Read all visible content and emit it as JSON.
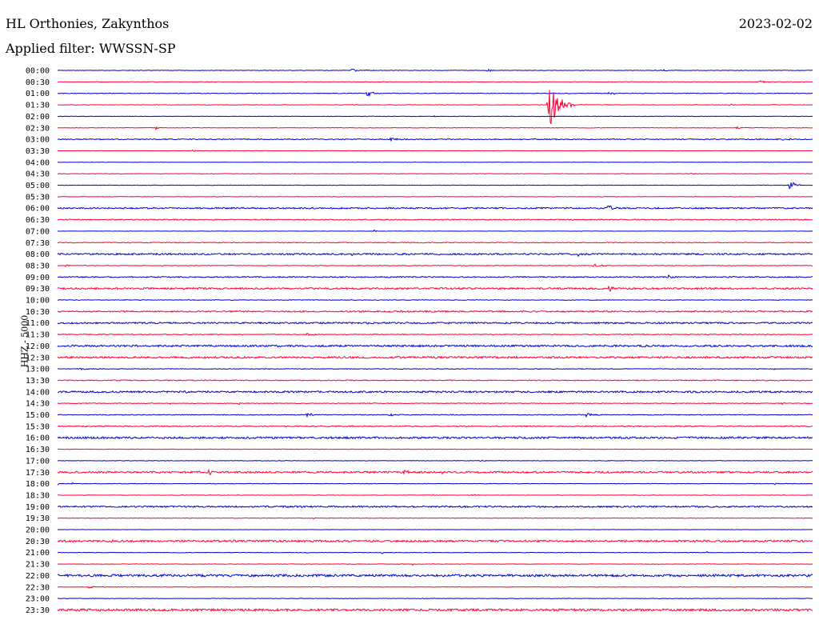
{
  "header": {
    "station": "HL Orthonies, Zakynthos",
    "filter": "Applied filter: WWSSN-SP",
    "date": "2023-02-02",
    "channel": "HHZ - 5000"
  },
  "colors": {
    "even_row": "#0000cc",
    "odd_row": "#ff0033",
    "text": "#000000"
  },
  "chart_data": {
    "type": "line",
    "description_free": true,
    "rows": [
      {
        "label": "00:00",
        "noise": 0.3,
        "events": [
          {
            "pos": 0.39,
            "amp": 2,
            "width": 0.04
          },
          {
            "pos": 0.57,
            "amp": 2,
            "width": 0.01
          },
          {
            "pos": 0.8,
            "amp": 1.5,
            "width": 0.02
          }
        ]
      },
      {
        "label": "00:30",
        "noise": 0.3,
        "events": [
          {
            "pos": 0.93,
            "amp": 2,
            "width": 0.015
          }
        ]
      },
      {
        "label": "01:00",
        "noise": 0.4,
        "events": [
          {
            "pos": 0.41,
            "amp": 4,
            "width": 0.02
          },
          {
            "pos": 0.73,
            "amp": 3,
            "width": 0.02
          }
        ]
      },
      {
        "label": "01:30",
        "noise": 0.3,
        "events": [
          {
            "pos": 0.65,
            "amp": 33,
            "width": 0.035
          },
          {
            "pos": 0.89,
            "amp": 1.5,
            "width": 0.015
          }
        ]
      },
      {
        "label": "02:00",
        "noise": 0.3,
        "events": [
          {
            "pos": 0.5,
            "amp": 2,
            "width": 0.004
          }
        ]
      },
      {
        "label": "02:30",
        "noise": 0.3,
        "events": [
          {
            "pos": 0.13,
            "amp": 3,
            "width": 0.008
          },
          {
            "pos": 0.9,
            "amp": 1.5,
            "width": 0.015
          }
        ]
      },
      {
        "label": "03:00",
        "noise": 0.6,
        "events": [
          {
            "pos": 0.44,
            "amp": 3,
            "width": 0.02
          },
          {
            "pos": 0.96,
            "amp": 2,
            "width": 0.02
          }
        ]
      },
      {
        "label": "03:30",
        "noise": 0.2,
        "events": [
          {
            "pos": 0.18,
            "amp": 2,
            "width": 0.006
          }
        ]
      },
      {
        "label": "04:00",
        "noise": 0.2,
        "events": []
      },
      {
        "label": "04:30",
        "noise": 0.3,
        "events": [
          {
            "pos": 0.84,
            "amp": 1.5,
            "width": 0.01
          }
        ]
      },
      {
        "label": "05:00",
        "noise": 0.3,
        "events": [
          {
            "pos": 0.97,
            "amp": 8,
            "width": 0.015
          }
        ]
      },
      {
        "label": "05:30",
        "noise": 0.3,
        "events": []
      },
      {
        "label": "06:00",
        "noise": 0.9,
        "events": [
          {
            "pos": 0.73,
            "amp": 7,
            "width": 0.012
          }
        ]
      },
      {
        "label": "06:30",
        "noise": 0.6,
        "events": []
      },
      {
        "label": "07:00",
        "noise": 0.2,
        "events": [
          {
            "pos": 0.42,
            "amp": 2,
            "width": 0.004
          }
        ]
      },
      {
        "label": "07:30",
        "noise": 0.5,
        "events": []
      },
      {
        "label": "08:00",
        "noise": 1.0,
        "events": [
          {
            "pos": 0.39,
            "amp": 3,
            "width": 0.008
          },
          {
            "pos": 0.69,
            "amp": 3,
            "width": 0.008
          }
        ]
      },
      {
        "label": "08:30",
        "noise": 0.4,
        "events": [
          {
            "pos": 0.01,
            "amp": 2,
            "width": 0.015
          },
          {
            "pos": 0.71,
            "amp": 4,
            "width": 0.025
          }
        ]
      },
      {
        "label": "09:00",
        "noise": 0.7,
        "events": [
          {
            "pos": 0.81,
            "amp": 3,
            "width": 0.02
          }
        ]
      },
      {
        "label": "09:30",
        "noise": 1.1,
        "events": [
          {
            "pos": 0.73,
            "amp": 4,
            "width": 0.015
          }
        ]
      },
      {
        "label": "10:00",
        "noise": 0.4,
        "events": []
      },
      {
        "label": "10:30",
        "noise": 0.9,
        "events": []
      },
      {
        "label": "11:00",
        "noise": 1.0,
        "events": [
          {
            "pos": 0.41,
            "amp": 2,
            "width": 0.005
          }
        ]
      },
      {
        "label": "11:30",
        "noise": 0.5,
        "events": [
          {
            "pos": 0.33,
            "amp": 1.5,
            "width": 0.03
          }
        ]
      },
      {
        "label": "12:00",
        "noise": 1.1,
        "events": [
          {
            "pos": 0.56,
            "amp": 2,
            "width": 0.008
          }
        ]
      },
      {
        "label": "12:30",
        "noise": 1.2,
        "events": []
      },
      {
        "label": "13:00",
        "noise": 0.4,
        "events": [
          {
            "pos": 0.03,
            "amp": 1.5,
            "width": 0.03
          },
          {
            "pos": 0.95,
            "amp": 1.5,
            "width": 0.006
          }
        ]
      },
      {
        "label": "13:30",
        "noise": 0.6,
        "events": []
      },
      {
        "label": "14:00",
        "noise": 1.1,
        "events": [
          {
            "pos": 0.17,
            "amp": 3,
            "width": 0.008
          }
        ]
      },
      {
        "label": "14:30",
        "noise": 0.4,
        "events": [
          {
            "pos": 0.15,
            "amp": 2,
            "width": 0.01
          },
          {
            "pos": 0.24,
            "amp": 2,
            "width": 0.008
          },
          {
            "pos": 0.37,
            "amp": 2,
            "width": 0.008
          },
          {
            "pos": 0.96,
            "amp": 2,
            "width": 0.006
          }
        ]
      },
      {
        "label": "15:00",
        "noise": 0.5,
        "events": [
          {
            "pos": 0.33,
            "amp": 2,
            "width": 0.04
          },
          {
            "pos": 0.44,
            "amp": 4,
            "width": 0.012
          },
          {
            "pos": 0.7,
            "amp": 3,
            "width": 0.025
          }
        ]
      },
      {
        "label": "15:30",
        "noise": 0.6,
        "events": []
      },
      {
        "label": "16:00",
        "noise": 1.2,
        "events": []
      },
      {
        "label": "16:30",
        "noise": 0.3,
        "events": [
          {
            "pos": 0.54,
            "amp": 1.5,
            "width": 0.005
          }
        ]
      },
      {
        "label": "17:00",
        "noise": 0.3,
        "events": [
          {
            "pos": 0.56,
            "amp": 1.5,
            "width": 0.015
          }
        ]
      },
      {
        "label": "17:30",
        "noise": 1.1,
        "events": [
          {
            "pos": 0.2,
            "amp": 5,
            "width": 0.01
          },
          {
            "pos": 0.46,
            "amp": 5,
            "width": 0.01
          },
          {
            "pos": 0.51,
            "amp": 3,
            "width": 0.015
          }
        ]
      },
      {
        "label": "18:00",
        "noise": 0.3,
        "events": [
          {
            "pos": 0.0,
            "amp": 2,
            "width": 0.005
          },
          {
            "pos": 0.02,
            "amp": 2,
            "width": 0.005
          },
          {
            "pos": 0.95,
            "amp": 2,
            "width": 0.005
          }
        ]
      },
      {
        "label": "18:30",
        "noise": 0.3,
        "events": [
          {
            "pos": 0.55,
            "amp": 1.5,
            "width": 0.008
          }
        ]
      },
      {
        "label": "19:00",
        "noise": 1.0,
        "events": []
      },
      {
        "label": "19:30",
        "noise": 0.3,
        "events": [
          {
            "pos": 0.34,
            "amp": 1.5,
            "width": 0.006
          },
          {
            "pos": 0.62,
            "amp": 2,
            "width": 0.008
          }
        ]
      },
      {
        "label": "20:00",
        "noise": 0.2,
        "events": []
      },
      {
        "label": "20:30",
        "noise": 1.2,
        "events": [
          {
            "pos": 0.07,
            "amp": 5,
            "width": 0.01
          }
        ]
      },
      {
        "label": "21:00",
        "noise": 0.3,
        "events": [
          {
            "pos": 0.33,
            "amp": 1.5,
            "width": 0.005
          },
          {
            "pos": 0.43,
            "amp": 1.5,
            "width": 0.005
          },
          {
            "pos": 0.86,
            "amp": 1.5,
            "width": 0.008
          }
        ]
      },
      {
        "label": "21:30",
        "noise": 0.3,
        "events": [
          {
            "pos": 0.47,
            "amp": 1.5,
            "width": 0.004
          }
        ]
      },
      {
        "label": "22:00",
        "noise": 1.4,
        "events": []
      },
      {
        "label": "22:30",
        "noise": 0.3,
        "events": [
          {
            "pos": 0.04,
            "amp": 2,
            "width": 0.02
          },
          {
            "pos": 0.08,
            "amp": 1.5,
            "width": 0.015
          }
        ]
      },
      {
        "label": "23:00",
        "noise": 0.3,
        "events": []
      },
      {
        "label": "23:30",
        "noise": 1.4,
        "events": []
      }
    ]
  }
}
